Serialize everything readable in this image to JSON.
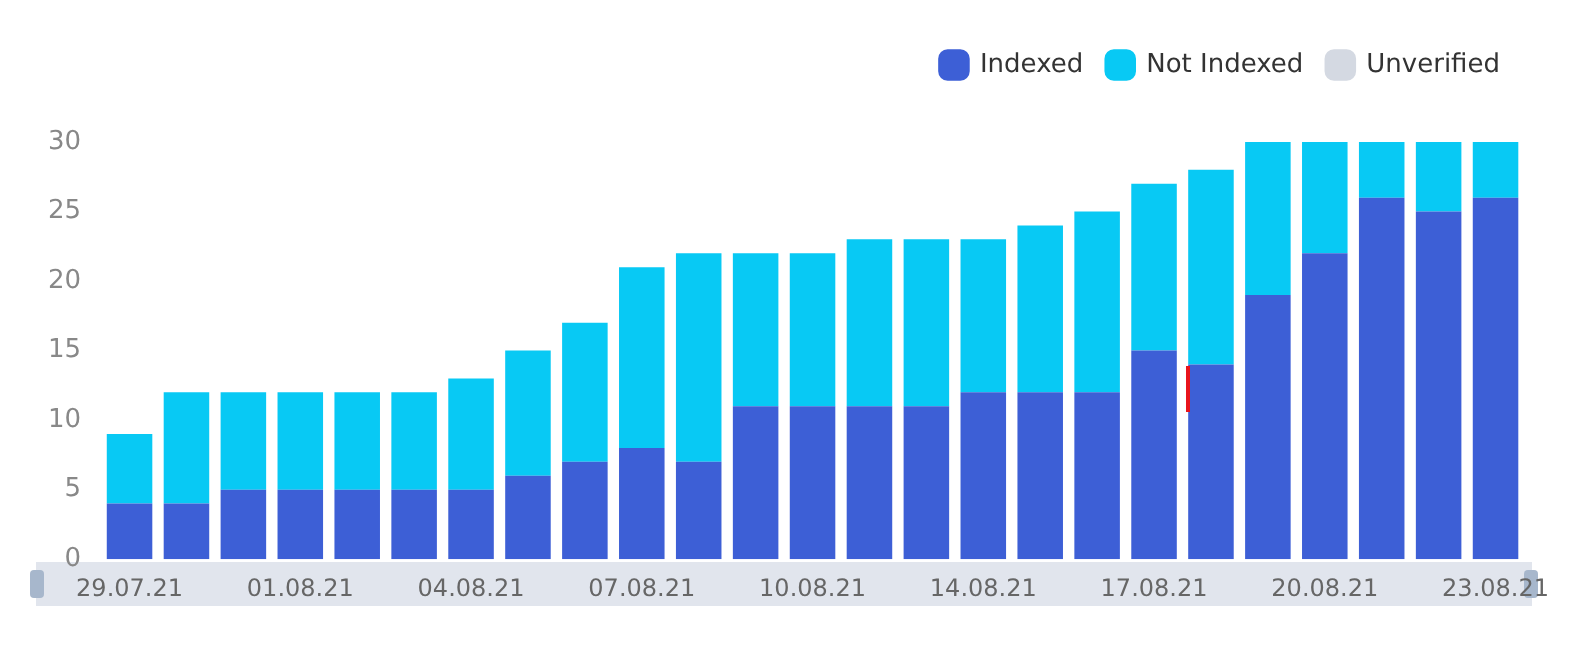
{
  "chart_data": {
    "type": "bar",
    "stacked": true,
    "legend": "top right",
    "grid": false,
    "categories": [
      "29.07.21",
      null,
      null,
      "01.08.21",
      null,
      null,
      "04.08.21",
      null,
      null,
      "07.08.21",
      null,
      null,
      "10.08.21",
      null,
      null,
      "14.08.21",
      null,
      null,
      "17.08.21",
      null,
      null,
      "20.08.21",
      null,
      null,
      "23.08.21"
    ],
    "ylim": [
      0,
      30
    ],
    "yticks": [
      0,
      5,
      10,
      15,
      20,
      25,
      30
    ],
    "series": [
      {
        "name": "Indexed",
        "color": "#3d5fd6",
        "values": [
          4,
          4,
          5,
          5,
          5,
          5,
          5,
          6,
          7,
          8,
          7,
          11,
          11,
          11,
          11,
          12,
          12,
          12,
          15,
          14,
          19,
          22,
          26,
          25,
          26
        ]
      },
      {
        "name": "Not Indexed",
        "color": "#08c9f4",
        "values": [
          5,
          8,
          7,
          7,
          7,
          7,
          8,
          9,
          10,
          13,
          15,
          11,
          11,
          12,
          12,
          11,
          12,
          13,
          12,
          14,
          11,
          8,
          4,
          5,
          4
        ]
      },
      {
        "name": "Unverified",
        "color": "#d4d9e2",
        "values": [
          0,
          0,
          0,
          0,
          0,
          0,
          0,
          0,
          0,
          0,
          0,
          0,
          0,
          0,
          0,
          0,
          0,
          0,
          0,
          0,
          0,
          0,
          0,
          0,
          0
        ]
      }
    ]
  }
}
